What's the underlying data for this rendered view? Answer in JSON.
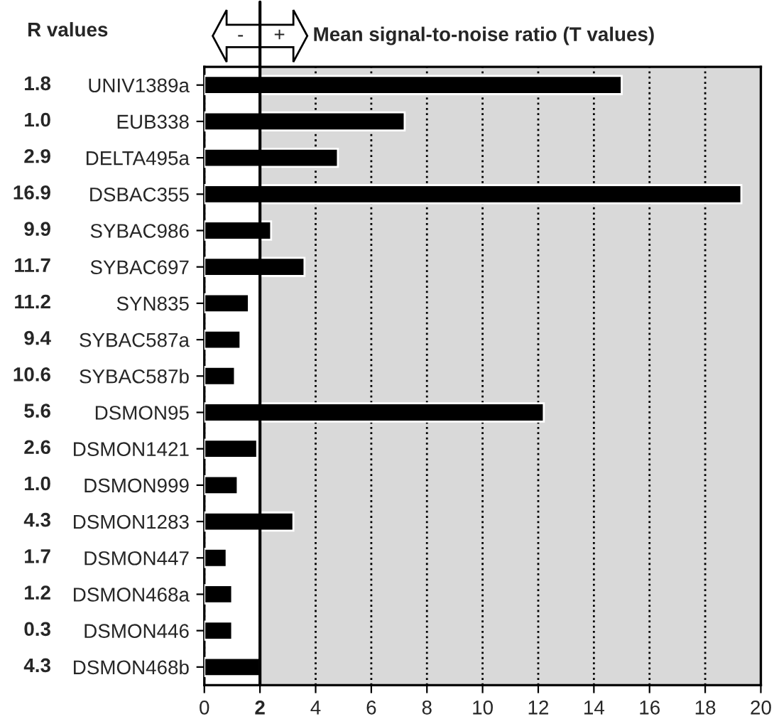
{
  "chart_data": {
    "type": "bar",
    "orientation": "horizontal",
    "title": "Mean signal-to-noise ratio (T values)",
    "categories": [
      "UNIV1389a",
      "EUB338",
      "DELTA495a",
      "DSBAC355",
      "SYBAC986",
      "SYBAC697",
      "SYN835",
      "SYBAC587a",
      "SYBAC587b",
      "DSMON95",
      "DSMON1421",
      "DSMON999",
      "DSMON1283",
      "DSMON447",
      "DSMON468a",
      "DSMON446",
      "DSMON468b"
    ],
    "values": [
      15.0,
      7.2,
      4.8,
      19.3,
      2.4,
      3.6,
      1.6,
      1.3,
      1.1,
      12.2,
      1.9,
      1.2,
      3.2,
      0.8,
      1.0,
      1.0,
      2.0
    ],
    "color": "#000000",
    "xlim": [
      0,
      20
    ],
    "xticks": [
      0,
      2,
      4,
      6,
      8,
      10,
      12,
      14,
      16,
      18,
      20
    ],
    "grid": "x",
    "bands": [
      {
        "axis": "x",
        "from": 2,
        "to": 20,
        "color": "#d9d9d9"
      }
    ],
    "ref_lines": [
      {
        "axis": "x",
        "value": 2,
        "color": "#000000",
        "line_style": "solid"
      }
    ],
    "annotations": [
      "R values",
      "-",
      "+",
      "1.8",
      "1.0",
      "2.9",
      "16.9",
      "9.9",
      "11.7",
      "11.2",
      "9.4",
      "10.6",
      "5.6",
      "2.6",
      "1.0",
      "4.3",
      "1.7",
      "1.2",
      "0.3",
      "4.3"
    ]
  }
}
